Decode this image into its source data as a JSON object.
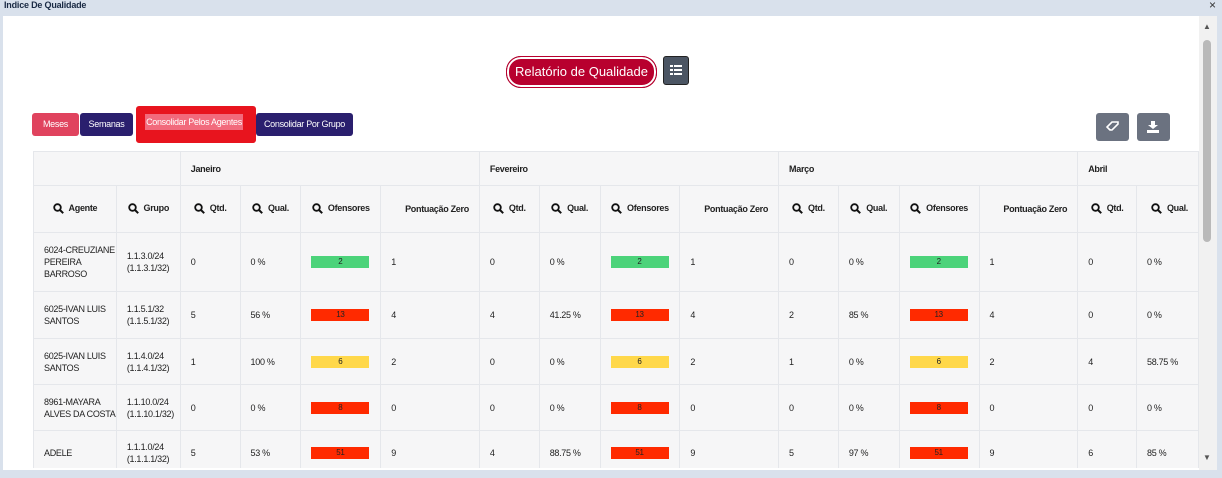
{
  "window": {
    "title": "Indice De Qualidade",
    "close": "×"
  },
  "header": {
    "report_button": "Relatório de Qualidade"
  },
  "tabs": {
    "meses": "Meses",
    "semanas": "Semanas",
    "agentes": "Consolidar Pelos Agentes",
    "grupo": "Consolidar Por Grupo"
  },
  "icons": {
    "eraser": "eraser-icon",
    "download": "download-icon",
    "grid": "grid-icon",
    "search": "search-icon"
  },
  "colors": {
    "accent": "#b8002e",
    "green": "#4cd37a",
    "red": "#ff2a00",
    "yellow": "#ffd84a"
  },
  "table": {
    "months": [
      "Janeiro",
      "Fevereiro",
      "Março",
      "Abril"
    ],
    "headers": {
      "agente": "Agente",
      "grupo": "Grupo",
      "qtd": "Qtd.",
      "qual": "Qual.",
      "ofensores": "Ofensores",
      "pontuacao": "Pontuação Zero"
    },
    "rows": [
      {
        "agente": "6024-CREUZIANE PEREIRA BARROSO",
        "grupo": "1.1.3.0/24 (1.1.3.1/32)",
        "m1": [
          "0",
          "0 %",
          "2",
          "1"
        ],
        "m2": [
          "0",
          "0 %",
          "2",
          "1"
        ],
        "m3": [
          "0",
          "0 %",
          "2",
          "1"
        ],
        "m4": [
          "0",
          "0 %"
        ],
        "badge": "green"
      },
      {
        "agente": "6025-IVAN LUIS SANTOS",
        "grupo": "1.1.5.1/32 (1.1.5.1/32)",
        "m1": [
          "5",
          "56 %",
          "13",
          "4"
        ],
        "m2": [
          "4",
          "41.25 %",
          "13",
          "4"
        ],
        "m3": [
          "2",
          "85 %",
          "13",
          "4"
        ],
        "m4": [
          "0",
          "0 %"
        ],
        "badge": "red"
      },
      {
        "agente": "6025-IVAN LUIS SANTOS",
        "grupo": "1.1.4.0/24 (1.1.4.1/32)",
        "m1": [
          "1",
          "100 %",
          "6",
          "2"
        ],
        "m2": [
          "0",
          "0 %",
          "6",
          "2"
        ],
        "m3": [
          "1",
          "0 %",
          "6",
          "2"
        ],
        "m4": [
          "4",
          "58.75 %"
        ],
        "badge": "yellow"
      },
      {
        "agente": "8961-MAYARA ALVES DA COSTA",
        "grupo": "1.1.10.0/24 (1.1.10.1/32)",
        "m1": [
          "0",
          "0 %",
          "8",
          "0"
        ],
        "m2": [
          "0",
          "0 %",
          "8",
          "0"
        ],
        "m3": [
          "0",
          "0 %",
          "8",
          "0"
        ],
        "m4": [
          "0",
          "0 %"
        ],
        "badge": "red"
      },
      {
        "agente": "ADELE",
        "grupo": "1.1.1.0/24 (1.1.1.1/32)",
        "m1": [
          "5",
          "53 %",
          "51",
          "9"
        ],
        "m2": [
          "4",
          "88.75 %",
          "51",
          "9"
        ],
        "m3": [
          "5",
          "97 %",
          "51",
          "9"
        ],
        "m4": [
          "6",
          "85 %"
        ],
        "badge": "red"
      }
    ]
  }
}
